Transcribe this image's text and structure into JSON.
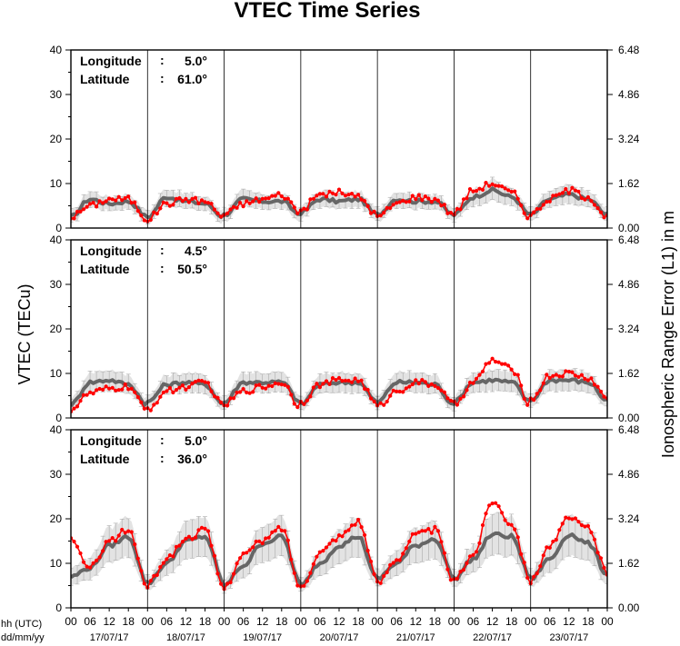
{
  "chart_data": {
    "type": "line",
    "title": "VTEC Time Series",
    "ylabel_left": "VTEC (TECu)",
    "ylabel_right": "Ionospheric Range Error (L1) in m",
    "xlabel_hours": "hh (UTC)",
    "xlabel_dates": "dd/mm/yy",
    "left_ticks": [
      "0",
      "10",
      "20",
      "30",
      "40"
    ],
    "right_ticks": [
      "0.00",
      "1.62",
      "3.24",
      "4.86",
      "6.48"
    ],
    "ylim": [
      0,
      40
    ],
    "ylim_right": [
      0,
      6.48
    ],
    "hour_labels": [
      "00",
      "06",
      "12",
      "18",
      "00",
      "06",
      "12",
      "18",
      "00",
      "06",
      "12",
      "18",
      "00",
      "06",
      "12",
      "18",
      "00",
      "06",
      "12",
      "18",
      "00",
      "06",
      "12",
      "18",
      "00",
      "06",
      "12",
      "18",
      "00"
    ],
    "dates": [
      "17/07/17",
      "18/07/17",
      "19/07/17",
      "20/07/17",
      "21/07/17",
      "22/07/17",
      "23/07/17"
    ],
    "days": 7,
    "colors": {
      "measured": "#ff0000",
      "reference": "#666666",
      "band": "#cccccc",
      "error_bar": "#aaaaaa"
    },
    "panels": [
      {
        "lon_label": "Longitude",
        "lon_value": "5.0°",
        "lat_label": "Latitude",
        "lat_value": "61.0°",
        "reference_daily": [
          [
            2.5,
            6.5,
            5.5,
            6.0,
            2.5
          ],
          [
            2.5,
            7.0,
            6.0,
            5.5,
            2.5
          ],
          [
            3.0,
            6.5,
            6.0,
            6.0,
            3.0
          ],
          [
            3.5,
            6.5,
            6.0,
            6.5,
            3.0
          ],
          [
            3.0,
            6.5,
            6.0,
            6.0,
            3.0
          ],
          [
            3.0,
            7.0,
            8.5,
            7.0,
            3.0
          ],
          [
            3.0,
            6.5,
            7.5,
            6.5,
            3.0
          ]
        ],
        "measured_daily": [
          [
            2.5,
            5.0,
            6.5,
            6.5,
            2.0
          ],
          [
            2.0,
            5.5,
            6.5,
            6.0,
            2.5
          ],
          [
            3.0,
            5.5,
            6.5,
            7.5,
            3.5
          ],
          [
            4.0,
            7.5,
            8.0,
            7.0,
            3.0
          ],
          [
            2.5,
            5.5,
            7.0,
            6.5,
            3.0
          ],
          [
            3.5,
            8.5,
            10.0,
            8.0,
            2.5
          ],
          [
            3.0,
            6.5,
            8.5,
            7.0,
            2.5
          ]
        ]
      },
      {
        "lon_label": "Longitude",
        "lon_value": "4.5°",
        "lat_label": "Latitude",
        "lat_value": "50.5°",
        "reference_daily": [
          [
            3.0,
            8.0,
            8.5,
            7.5,
            3.0
          ],
          [
            3.5,
            7.5,
            8.0,
            7.5,
            3.0
          ],
          [
            3.5,
            8.0,
            8.0,
            8.0,
            3.5
          ],
          [
            3.0,
            7.5,
            8.0,
            8.0,
            3.5
          ],
          [
            3.5,
            8.0,
            8.0,
            7.5,
            3.0
          ],
          [
            3.5,
            8.0,
            8.5,
            8.0,
            3.5
          ],
          [
            4.0,
            8.5,
            8.5,
            8.0,
            4.0
          ]
        ],
        "measured_daily": [
          [
            2.0,
            5.5,
            6.5,
            7.0,
            1.5
          ],
          [
            2.0,
            6.0,
            7.0,
            8.0,
            2.5
          ],
          [
            3.0,
            6.0,
            7.0,
            8.0,
            2.5
          ],
          [
            3.5,
            7.5,
            8.5,
            8.5,
            3.0
          ],
          [
            2.5,
            6.0,
            8.0,
            7.5,
            3.0
          ],
          [
            3.0,
            8.0,
            13.0,
            11.0,
            3.0
          ],
          [
            4.0,
            9.5,
            10.0,
            9.0,
            4.5
          ]
        ]
      },
      {
        "lon_label": "Longitude",
        "lon_value": "5.0°",
        "lat_label": "Latitude",
        "lat_value": "36.0°",
        "reference_daily": [
          [
            7.0,
            9.0,
            14.0,
            16.0,
            5.5
          ],
          [
            5.5,
            10.0,
            15.0,
            16.0,
            5.5
          ],
          [
            5.0,
            9.5,
            14.5,
            16.0,
            5.5
          ],
          [
            5.0,
            10.0,
            14.0,
            16.0,
            6.5
          ],
          [
            6.5,
            10.0,
            14.0,
            15.5,
            7.0
          ],
          [
            6.5,
            11.0,
            16.5,
            16.0,
            7.0
          ],
          [
            6.5,
            11.0,
            16.5,
            14.5,
            7.5
          ]
        ],
        "measured_daily": [
          [
            15.0,
            9.0,
            15.0,
            17.5,
            5.0
          ],
          [
            5.0,
            11.0,
            15.5,
            17.5,
            4.5
          ],
          [
            4.5,
            12.0,
            15.0,
            18.0,
            4.5
          ],
          [
            4.5,
            12.5,
            16.0,
            19.5,
            6.5
          ],
          [
            5.5,
            11.0,
            16.5,
            17.5,
            6.0
          ],
          [
            6.0,
            12.0,
            24.0,
            19.0,
            6.5
          ],
          [
            6.0,
            14.0,
            20.0,
            18.0,
            8.0
          ]
        ]
      }
    ]
  }
}
